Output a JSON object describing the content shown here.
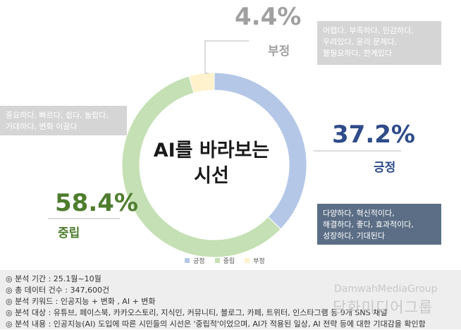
{
  "chart_data": {
    "type": "pie",
    "title": "AI를 바라보는 시선",
    "categories": [
      "긍정",
      "중립",
      "부정"
    ],
    "values": [
      37.2,
      58.4,
      4.4
    ],
    "value_labels": [
      "37.2%",
      "58.4%",
      "4.4%"
    ],
    "colors": [
      "#b4c7e7",
      "#c5e0b4",
      "#fff2cc"
    ],
    "label_colors": [
      "#2f4c8a",
      "#4e7d2e",
      "#a0a0a0"
    ],
    "legend": [
      "긍정",
      "중립",
      "부정"
    ],
    "legend_position": "bottom"
  },
  "annotations": {
    "negative": "어렵다, 부족하다, 민감하다,\n우려있다, 윤리 문제다,\n불필요하다, 한계있다",
    "neutral": "중요하다, 빠르다, 쉽다, 놀랍다,\n거대하다, 변화 이끌다",
    "positive": "다양하다, 혁신적이다,\n해결하다, 좋다, 효과적이다,\n성장하다, 기대된다"
  },
  "footer": [
    "◎ 분석 기간 : 25.1월~10월",
    "◎ 총 데이터 건수 : 347,600건",
    "◎ 분석 키워드 : 인공지능 + 변화 , AI + 변화",
    "◎ 분석 대상 : 유튜브, 페이스북, 카카오스토리, 지식인, 커뮤니티, 블로그, 카페, 트위터, 인스타그램 등 9개 SNS 채널",
    "◎ 분석 내용 : 인공지능(AI) 도입에 따른 시민들의 시선은 '중립적'이었으며, AI가 적용된 일상, AI 전략 등에 대한 기대감을 확인함"
  ],
  "watermark": {
    "en": "DamwahMediaGroup",
    "ko": "담화미디어그룹"
  }
}
